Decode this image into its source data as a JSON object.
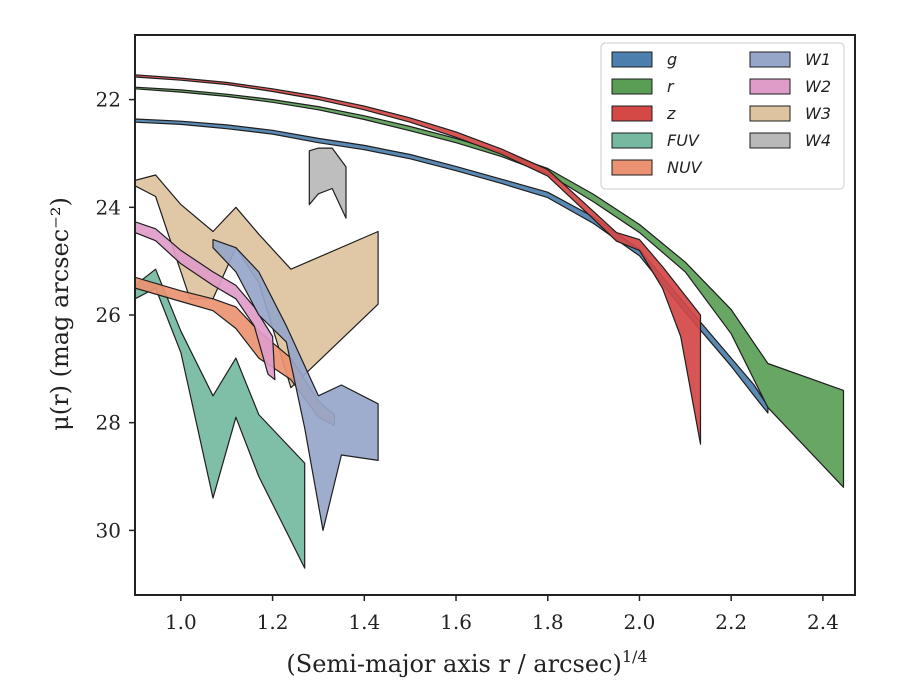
{
  "chart_data": {
    "type": "area",
    "xlabel": "(Semi-major axis r / arcsec)",
    "xlabel_sup": "1/4",
    "ylabel": "μ(r) (mag arcsec⁻²)",
    "xlim": [
      0.9,
      2.47
    ],
    "ylim": [
      31.2,
      20.8
    ],
    "y_inverted": true,
    "xticks": [
      1.0,
      1.2,
      1.4,
      1.6,
      1.8,
      2.0,
      2.2,
      2.4
    ],
    "xtick_labels": [
      "1.0",
      "1.2",
      "1.4",
      "1.6",
      "1.8",
      "2.0",
      "2.2",
      "2.4"
    ],
    "yticks": [
      22,
      24,
      26,
      28,
      30
    ],
    "ytick_labels": [
      "22",
      "24",
      "26",
      "28",
      "30"
    ],
    "grid": false,
    "legend_position": "top-right",
    "legend_columns": 2,
    "series": [
      {
        "name": "g",
        "color": "#4c7fad",
        "upper": [
          [
            0.9,
            22.36
          ],
          [
            1.0,
            22.4
          ],
          [
            1.1,
            22.47
          ],
          [
            1.2,
            22.57
          ],
          [
            1.3,
            22.72
          ],
          [
            1.4,
            22.85
          ],
          [
            1.5,
            23.02
          ],
          [
            1.6,
            23.24
          ],
          [
            1.7,
            23.48
          ],
          [
            1.8,
            23.72
          ],
          [
            1.9,
            24.18
          ],
          [
            2.0,
            24.78
          ],
          [
            2.1,
            25.8
          ],
          [
            2.2,
            26.8
          ],
          [
            2.25,
            27.3
          ],
          [
            2.28,
            27.7
          ]
        ],
        "lower": [
          [
            0.9,
            22.42
          ],
          [
            1.0,
            22.46
          ],
          [
            1.1,
            22.54
          ],
          [
            1.2,
            22.64
          ],
          [
            1.3,
            22.8
          ],
          [
            1.4,
            22.93
          ],
          [
            1.5,
            23.1
          ],
          [
            1.6,
            23.32
          ],
          [
            1.7,
            23.56
          ],
          [
            1.8,
            23.82
          ],
          [
            1.9,
            24.3
          ],
          [
            2.0,
            24.9
          ],
          [
            2.1,
            25.95
          ],
          [
            2.2,
            26.95
          ],
          [
            2.25,
            27.5
          ],
          [
            2.28,
            27.82
          ]
        ],
        "endcap_y": [
          27.7,
          27.82
        ]
      },
      {
        "name": "r",
        "color": "#5a9e56",
        "upper": [
          [
            0.9,
            21.77
          ],
          [
            1.0,
            21.82
          ],
          [
            1.1,
            21.9
          ],
          [
            1.2,
            22.0
          ],
          [
            1.3,
            22.13
          ],
          [
            1.4,
            22.3
          ],
          [
            1.5,
            22.5
          ],
          [
            1.6,
            22.72
          ],
          [
            1.7,
            22.98
          ],
          [
            1.8,
            23.28
          ],
          [
            1.9,
            23.76
          ],
          [
            2.0,
            24.32
          ],
          [
            2.1,
            25.02
          ],
          [
            2.2,
            25.9
          ],
          [
            2.28,
            26.9
          ],
          [
            2.445,
            27.4
          ]
        ],
        "lower": [
          [
            0.9,
            21.8
          ],
          [
            1.0,
            21.86
          ],
          [
            1.1,
            21.94
          ],
          [
            1.2,
            22.05
          ],
          [
            1.3,
            22.19
          ],
          [
            1.4,
            22.37
          ],
          [
            1.5,
            22.58
          ],
          [
            1.6,
            22.8
          ],
          [
            1.7,
            23.06
          ],
          [
            1.8,
            23.38
          ],
          [
            1.9,
            23.9
          ],
          [
            2.0,
            24.47
          ],
          [
            2.1,
            25.2
          ],
          [
            2.2,
            26.35
          ],
          [
            2.28,
            27.72
          ],
          [
            2.445,
            29.2
          ]
        ],
        "endcap_y": [
          27.4,
          29.2
        ]
      },
      {
        "name": "z",
        "color": "#d44846",
        "upper": [
          [
            0.9,
            21.54
          ],
          [
            1.0,
            21.6
          ],
          [
            1.1,
            21.68
          ],
          [
            1.2,
            21.8
          ],
          [
            1.3,
            21.94
          ],
          [
            1.4,
            22.12
          ],
          [
            1.5,
            22.34
          ],
          [
            1.6,
            22.6
          ],
          [
            1.7,
            22.92
          ],
          [
            1.8,
            23.3
          ],
          [
            1.9,
            24.08
          ],
          [
            1.95,
            24.47
          ],
          [
            2.0,
            24.6
          ],
          [
            2.05,
            25.1
          ],
          [
            2.133,
            26.0
          ]
        ],
        "lower": [
          [
            0.9,
            21.58
          ],
          [
            1.0,
            21.64
          ],
          [
            1.1,
            21.72
          ],
          [
            1.2,
            21.85
          ],
          [
            1.3,
            22.0
          ],
          [
            1.4,
            22.19
          ],
          [
            1.5,
            22.42
          ],
          [
            1.6,
            22.7
          ],
          [
            1.7,
            23.02
          ],
          [
            1.8,
            23.42
          ],
          [
            1.9,
            24.22
          ],
          [
            1.95,
            24.63
          ],
          [
            2.0,
            24.8
          ],
          [
            2.05,
            25.5
          ],
          [
            2.09,
            26.4
          ],
          [
            2.133,
            28.4
          ]
        ],
        "endcap_y": [
          26.0,
          28.4
        ]
      },
      {
        "name": "FUV",
        "color": "#74b9a0",
        "upper": [
          [
            0.9,
            25.45
          ],
          [
            0.945,
            25.15
          ],
          [
            1.0,
            26.3
          ],
          [
            1.07,
            27.5
          ],
          [
            1.12,
            26.8
          ],
          [
            1.17,
            27.85
          ],
          [
            1.27,
            28.75
          ]
        ],
        "lower": [
          [
            0.9,
            25.7
          ],
          [
            0.945,
            25.5
          ],
          [
            1.0,
            26.7
          ],
          [
            1.07,
            29.4
          ],
          [
            1.12,
            27.9
          ],
          [
            1.17,
            29.0
          ],
          [
            1.27,
            30.7
          ]
        ],
        "endcap_y": [
          28.75,
          30.7
        ]
      },
      {
        "name": "NUV",
        "color": "#eb9272",
        "upper": [
          [
            0.9,
            25.3
          ],
          [
            1.0,
            25.55
          ],
          [
            1.07,
            25.7
          ],
          [
            1.12,
            25.85
          ],
          [
            1.17,
            26.3
          ],
          [
            1.24,
            26.8
          ],
          [
            1.3,
            27.6
          ],
          [
            1.335,
            27.85
          ]
        ],
        "lower": [
          [
            0.9,
            25.5
          ],
          [
            1.0,
            25.75
          ],
          [
            1.07,
            25.92
          ],
          [
            1.12,
            26.25
          ],
          [
            1.17,
            26.8
          ],
          [
            1.24,
            27.2
          ],
          [
            1.3,
            27.9
          ],
          [
            1.335,
            28.05
          ]
        ],
        "endcap_y": [
          27.85,
          28.05
        ]
      },
      {
        "name": "W1",
        "color": "#96a6c9",
        "upper": [
          [
            1.07,
            24.6
          ],
          [
            1.12,
            24.75
          ],
          [
            1.17,
            25.2
          ],
          [
            1.23,
            26.2
          ],
          [
            1.3,
            27.5
          ],
          [
            1.35,
            27.3
          ],
          [
            1.43,
            27.65
          ]
        ],
        "lower": [
          [
            1.07,
            24.75
          ],
          [
            1.12,
            25.2
          ],
          [
            1.17,
            26.0
          ],
          [
            1.23,
            26.5
          ],
          [
            1.27,
            28.1
          ],
          [
            1.31,
            30.0
          ],
          [
            1.35,
            28.6
          ],
          [
            1.43,
            28.7
          ]
        ],
        "endcap_y": [
          27.65,
          28.7
        ]
      },
      {
        "name": "W2",
        "color": "#e09cc9",
        "upper": [
          [
            0.9,
            24.27
          ],
          [
            0.945,
            24.4
          ],
          [
            1.0,
            24.8
          ],
          [
            1.07,
            25.2
          ],
          [
            1.12,
            25.45
          ],
          [
            1.16,
            25.85
          ],
          [
            1.2,
            26.4
          ],
          [
            1.205,
            27.2
          ]
        ],
        "lower": [
          [
            0.9,
            24.47
          ],
          [
            0.945,
            24.62
          ],
          [
            1.0,
            25.05
          ],
          [
            1.07,
            25.45
          ],
          [
            1.12,
            25.7
          ],
          [
            1.16,
            26.2
          ],
          [
            1.19,
            27.1
          ],
          [
            1.205,
            27.2
          ]
        ],
        "endcap_y": [
          26.4,
          27.2
        ]
      },
      {
        "name": "W3",
        "color": "#ddc39f",
        "upper": [
          [
            0.9,
            23.5
          ],
          [
            0.945,
            23.4
          ],
          [
            1.0,
            23.95
          ],
          [
            1.07,
            24.45
          ],
          [
            1.12,
            24.0
          ],
          [
            1.17,
            24.5
          ],
          [
            1.24,
            25.15
          ],
          [
            1.43,
            24.45
          ]
        ],
        "lower": [
          [
            0.9,
            23.6
          ],
          [
            0.945,
            23.8
          ],
          [
            1.02,
            25.7
          ],
          [
            1.07,
            25.7
          ],
          [
            1.12,
            24.75
          ],
          [
            1.17,
            25.4
          ],
          [
            1.24,
            27.35
          ],
          [
            1.43,
            25.8
          ]
        ],
        "endcap_y": [
          24.45,
          25.8
        ]
      },
      {
        "name": "W4",
        "color": "#b9b9b9",
        "upper": [
          [
            1.28,
            22.95
          ],
          [
            1.3,
            22.9
          ],
          [
            1.33,
            22.9
          ],
          [
            1.36,
            23.25
          ]
        ],
        "lower": [
          [
            1.28,
            23.95
          ],
          [
            1.3,
            23.75
          ],
          [
            1.33,
            23.65
          ],
          [
            1.36,
            24.2
          ]
        ],
        "endcap_y": [
          23.25,
          24.2
        ]
      }
    ],
    "draw_order": [
      "W4",
      "W3",
      "FUV",
      "NUV",
      "W2",
      "W1",
      "g",
      "r",
      "z"
    ]
  }
}
